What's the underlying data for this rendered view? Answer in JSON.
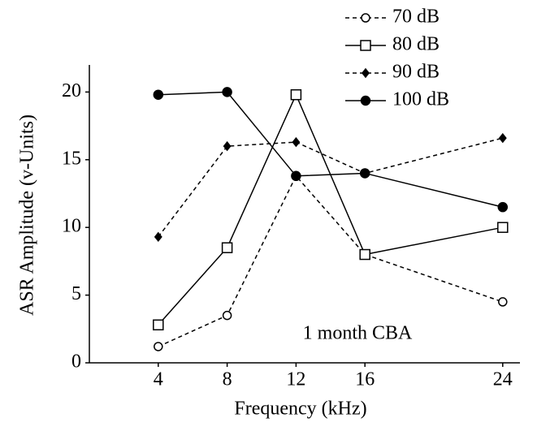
{
  "chart_data": {
    "type": "line",
    "y_label": "ASR Amplitude (v-Units)",
    "x_label": "Frequency (kHz)",
    "annotation": "1 month CBA",
    "x": [
      4,
      8,
      12,
      16,
      24
    ],
    "xlim": [
      0,
      25
    ],
    "xticks": [
      4,
      8,
      12,
      16,
      24
    ],
    "ylim": [
      0,
      22
    ],
    "yticks": [
      0,
      5,
      10,
      15,
      20
    ],
    "grid": false,
    "legend": "top-right",
    "series": [
      {
        "name": "70 dB",
        "color": "#000000",
        "dash": true,
        "marker": "open-circle",
        "values": [
          1.2,
          3.5,
          13.8,
          8,
          4.5
        ]
      },
      {
        "name": "80 dB",
        "color": "#000000",
        "dash": false,
        "marker": "open-square",
        "values": [
          2.8,
          8.5,
          19.8,
          8,
          10
        ]
      },
      {
        "name": "90 dB",
        "color": "#000000",
        "dash": true,
        "marker": "filled-diamond",
        "values": [
          9.3,
          16,
          16.3,
          14,
          16.6
        ]
      },
      {
        "name": "100 dB",
        "color": "#000000",
        "dash": false,
        "marker": "filled-circle",
        "values": [
          19.8,
          20,
          13.8,
          14,
          11.5
        ]
      }
    ]
  }
}
